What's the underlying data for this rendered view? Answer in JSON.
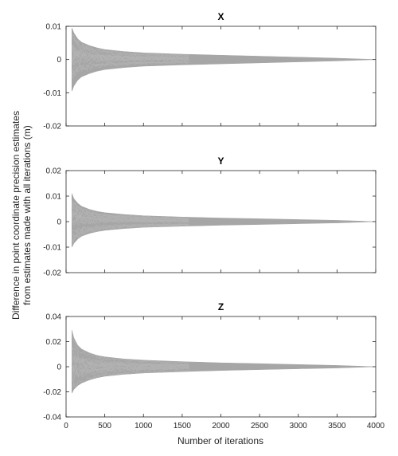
{
  "ylabel_lines": [
    "Difference in point coordinate precision estimates",
    "from estimates made with all iterations (m)"
  ],
  "xlabel": "Number of iterations",
  "colors": {
    "series": "#a6a6a6",
    "axes": "#262626",
    "background": "#ffffff"
  },
  "chart_data": [
    {
      "type": "line",
      "title": "X",
      "xlim": [
        0,
        4000
      ],
      "ylim": [
        -0.02,
        0.01
      ],
      "yticks": [
        -0.02,
        -0.01,
        0,
        0.01
      ],
      "ytick_labels": [
        "-0.02",
        "-0.01",
        "0",
        "0.01"
      ],
      "xtick_labels_shown": false,
      "grid": false,
      "envelope": {
        "x": [
          75,
          100,
          150,
          200,
          300,
          400,
          500,
          750,
          1000,
          1500,
          2000,
          2500,
          3000,
          3500,
          4000
        ],
        "upper": [
          0.0095,
          0.008,
          0.0062,
          0.0052,
          0.0042,
          0.0035,
          0.003,
          0.0024,
          0.002,
          0.0016,
          0.0013,
          0.001,
          0.0007,
          0.0004,
          0
        ],
        "lower": [
          -0.0095,
          -0.008,
          -0.0062,
          -0.0052,
          -0.0042,
          -0.0035,
          -0.003,
          -0.0024,
          -0.002,
          -0.0016,
          -0.0013,
          -0.001,
          -0.0007,
          -0.0004,
          0
        ]
      }
    },
    {
      "type": "line",
      "title": "Y",
      "xlim": [
        0,
        4000
      ],
      "ylim": [
        -0.02,
        0.02
      ],
      "yticks": [
        -0.02,
        -0.01,
        0,
        0.01,
        0.02
      ],
      "ytick_labels": [
        "-0.02",
        "-0.01",
        "0",
        "0.01",
        "0.02"
      ],
      "xtick_labels_shown": false,
      "grid": false,
      "envelope": {
        "x": [
          75,
          100,
          150,
          200,
          300,
          400,
          500,
          750,
          1000,
          1500,
          2000,
          2500,
          3000,
          3500,
          4000
        ],
        "upper": [
          0.011,
          0.009,
          0.0072,
          0.006,
          0.0048,
          0.004,
          0.0035,
          0.0028,
          0.0023,
          0.0018,
          0.0014,
          0.0011,
          0.0008,
          0.0005,
          0
        ],
        "lower": [
          -0.01,
          -0.0085,
          -0.0068,
          -0.0057,
          -0.0046,
          -0.0039,
          -0.0034,
          -0.0027,
          -0.0022,
          -0.0018,
          -0.0014,
          -0.0011,
          -0.0008,
          -0.0005,
          0
        ]
      }
    },
    {
      "type": "line",
      "title": "Z",
      "xlim": [
        0,
        4000
      ],
      "ylim": [
        -0.04,
        0.04
      ],
      "yticks": [
        -0.04,
        -0.02,
        0,
        0.02,
        0.04
      ],
      "ytick_labels": [
        "-0.04",
        "-0.02",
        "0",
        "0.02",
        "0.04"
      ],
      "xticks": [
        0,
        500,
        1000,
        1500,
        2000,
        2500,
        3000,
        3500,
        4000
      ],
      "xtick_labels": [
        "0",
        "500",
        "1000",
        "1500",
        "2000",
        "2500",
        "3000",
        "3500",
        "4000"
      ],
      "xtick_labels_shown": true,
      "grid": false,
      "envelope": {
        "x": [
          75,
          100,
          150,
          200,
          300,
          400,
          500,
          750,
          1000,
          1500,
          2000,
          2500,
          3000,
          3500,
          4000
        ],
        "upper": [
          0.029,
          0.023,
          0.017,
          0.014,
          0.011,
          0.009,
          0.0078,
          0.0062,
          0.0052,
          0.004,
          0.0031,
          0.0024,
          0.0017,
          0.001,
          0
        ],
        "lower": [
          -0.021,
          -0.018,
          -0.015,
          -0.013,
          -0.0105,
          -0.0088,
          -0.0076,
          -0.006,
          -0.005,
          -0.0039,
          -0.003,
          -0.0023,
          -0.0016,
          -0.001,
          0
        ]
      }
    }
  ]
}
